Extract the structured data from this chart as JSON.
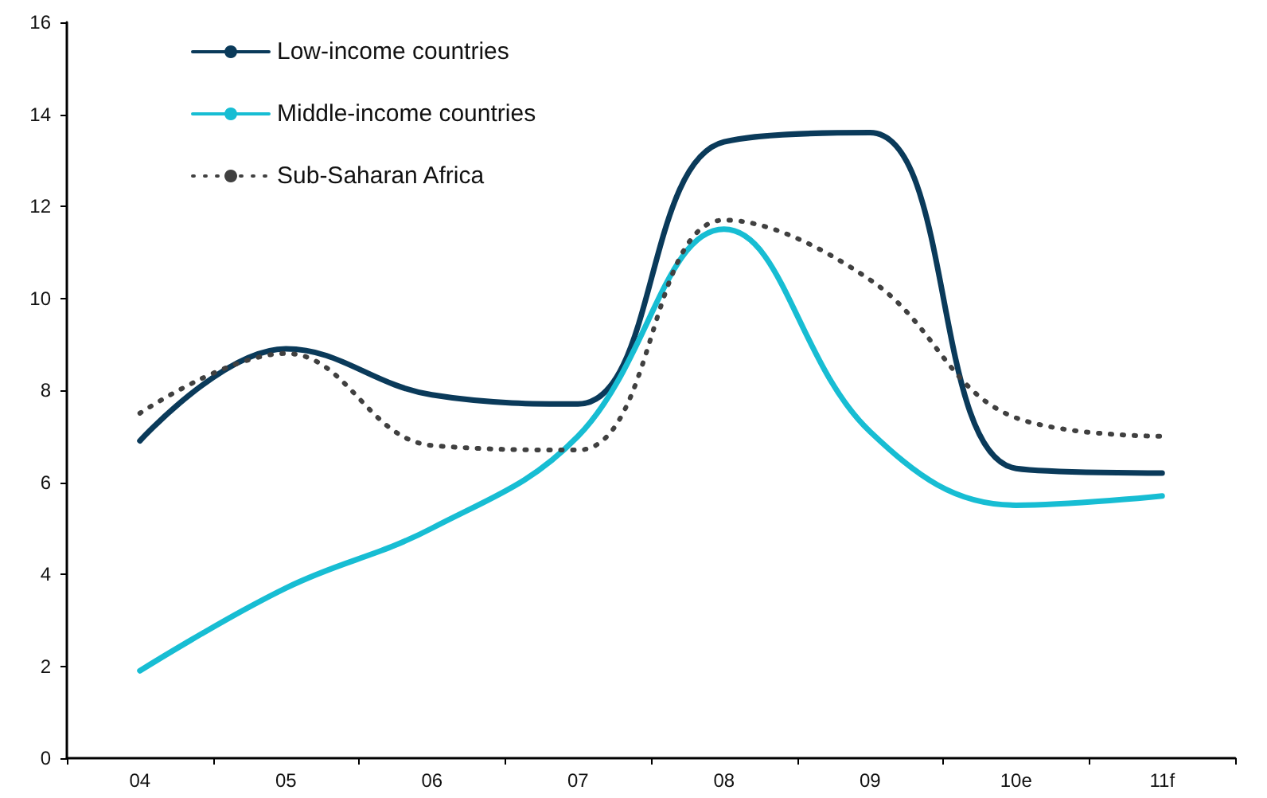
{
  "chart_data": {
    "type": "line",
    "categories": [
      "04",
      "05",
      "06",
      "07",
      "08",
      "09",
      "10e",
      "11f"
    ],
    "series": [
      {
        "name": "Low-income countries",
        "color": "#0a3a5a",
        "line_style": "solid",
        "values": [
          6.9,
          8.9,
          7.9,
          7.7,
          13.4,
          13.6,
          6.3,
          6.2
        ]
      },
      {
        "name": "Middle-income countries",
        "color": "#17bdd3",
        "line_style": "solid",
        "values": [
          1.9,
          3.7,
          5.0,
          7.0,
          11.5,
          7.1,
          5.5,
          5.7
        ]
      },
      {
        "name": "Sub-Saharan Africa",
        "color": "#404040",
        "line_style": "dotted",
        "values": [
          7.5,
          8.8,
          6.8,
          6.7,
          11.7,
          10.4,
          7.4,
          7.0
        ]
      }
    ],
    "ylim": [
      0,
      16
    ],
    "yticks": [
      0,
      2,
      4,
      6,
      8,
      10,
      12,
      14,
      16
    ],
    "grid": false,
    "legend": "top left",
    "marker": "none"
  }
}
